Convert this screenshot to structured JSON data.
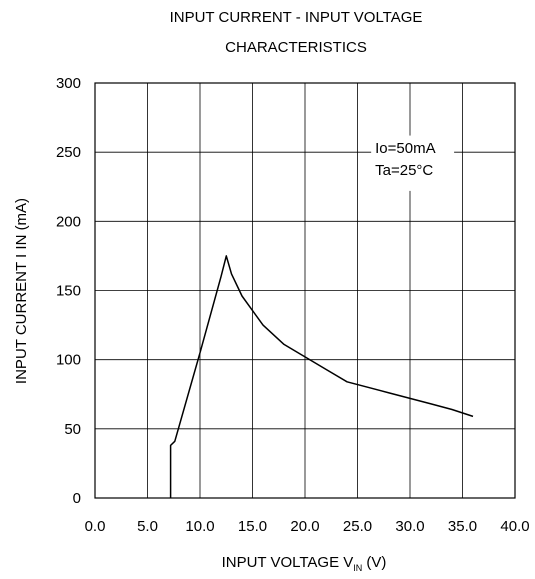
{
  "chart_data": {
    "type": "line",
    "title_lines": [
      "INPUT CURRENT  -  INPUT VOLTAGE",
      "CHARACTERISTICS"
    ],
    "xlabel_main": "INPUT VOLTAGE V",
    "xlabel_sub": "IN",
    "xlabel_unit": " (V)",
    "ylabel": "INPUT CURRENT I IN (mA)",
    "xlim": [
      0,
      40
    ],
    "ylim": [
      0,
      300
    ],
    "x_ticks": [
      0,
      5,
      10,
      15,
      20,
      25,
      30,
      35,
      40
    ],
    "x_tick_labels": [
      "0.0",
      "5.0",
      "10.0",
      "15.0",
      "20.0",
      "25.0",
      "30.0",
      "35.0",
      "40.0"
    ],
    "y_ticks": [
      0,
      50,
      100,
      150,
      200,
      250,
      300
    ],
    "y_tick_labels": [
      "0",
      "50",
      "100",
      "150",
      "200",
      "250",
      "300"
    ],
    "grid": true,
    "annotation_lines": [
      "Io=50mA",
      "Ta=25°C"
    ],
    "series": [
      {
        "x": [
          7.2,
          7.2,
          7.6,
          10.0,
          12.0,
          12.5,
          13.0,
          14.0,
          16.0,
          18.0,
          20.0,
          22.0,
          24.0,
          26.0,
          28.0,
          30.0,
          32.0,
          34.0,
          36.0
        ],
        "y": [
          0,
          38,
          41,
          105,
          160,
          175,
          162,
          146,
          125,
          111,
          102,
          93,
          84,
          80,
          76,
          72,
          68,
          64,
          59
        ],
        "color": "#000000"
      }
    ]
  }
}
